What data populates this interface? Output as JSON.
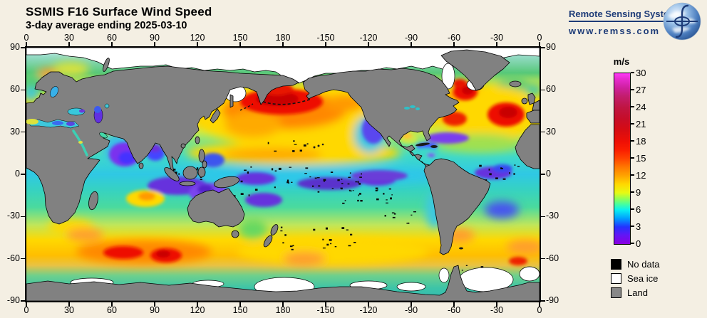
{
  "header": {
    "title": "SSMIS F16 Surface Wind Speed",
    "subtitle": "3-day average ending 2025-03-10"
  },
  "branding": {
    "name": "Remote Sensing Systems",
    "url": "www.remss.com",
    "text_color": "#1e3c78"
  },
  "map_axes": {
    "lon_labels": [
      "0",
      "30",
      "60",
      "90",
      "120",
      "150",
      "180",
      "-150",
      "-120",
      "-90",
      "-60",
      "-30",
      "0"
    ],
    "lat_labels": [
      "90",
      "60",
      "30",
      "0",
      "-30",
      "-60",
      "-90"
    ]
  },
  "colorbar": {
    "units": "m/s",
    "ticks": [
      "30",
      "27",
      "24",
      "21",
      "18",
      "15",
      "12",
      "9",
      "6",
      "3",
      "0"
    ],
    "min": 0,
    "max": 30,
    "stops": [
      {
        "v": 0,
        "c": "#8a00e0"
      },
      {
        "v": 1.5,
        "c": "#6414f5"
      },
      {
        "v": 3,
        "c": "#2432ff"
      },
      {
        "v": 4.5,
        "c": "#00a0ff"
      },
      {
        "v": 6,
        "c": "#0af0f0"
      },
      {
        "v": 7,
        "c": "#46ffa0"
      },
      {
        "v": 8,
        "c": "#96ff50"
      },
      {
        "v": 9,
        "c": "#e6fa14"
      },
      {
        "v": 10.5,
        "c": "#ffd800"
      },
      {
        "v": 12,
        "c": "#ffa400"
      },
      {
        "v": 13.5,
        "c": "#ff7800"
      },
      {
        "v": 15,
        "c": "#ff4400"
      },
      {
        "v": 16.5,
        "c": "#fa1e00"
      },
      {
        "v": 18,
        "c": "#ee0f05"
      },
      {
        "v": 20,
        "c": "#d60c12"
      },
      {
        "v": 22,
        "c": "#c60d28"
      },
      {
        "v": 24,
        "c": "#bf1542"
      },
      {
        "v": 26,
        "c": "#c31d6e"
      },
      {
        "v": 27.5,
        "c": "#cf21a0"
      },
      {
        "v": 29,
        "c": "#e72cd0"
      },
      {
        "v": 30,
        "c": "#ff38f8"
      }
    ]
  },
  "legend": {
    "items": [
      {
        "label": "No data",
        "color": "#000000"
      },
      {
        "label": "Sea ice",
        "color": "#ffffff"
      },
      {
        "label": "Land",
        "color": "#888888"
      }
    ]
  },
  "colors": {
    "background": "#f4efe3",
    "land": "#818181",
    "sea_ice": "#ffffff",
    "no_data": "#000000"
  }
}
